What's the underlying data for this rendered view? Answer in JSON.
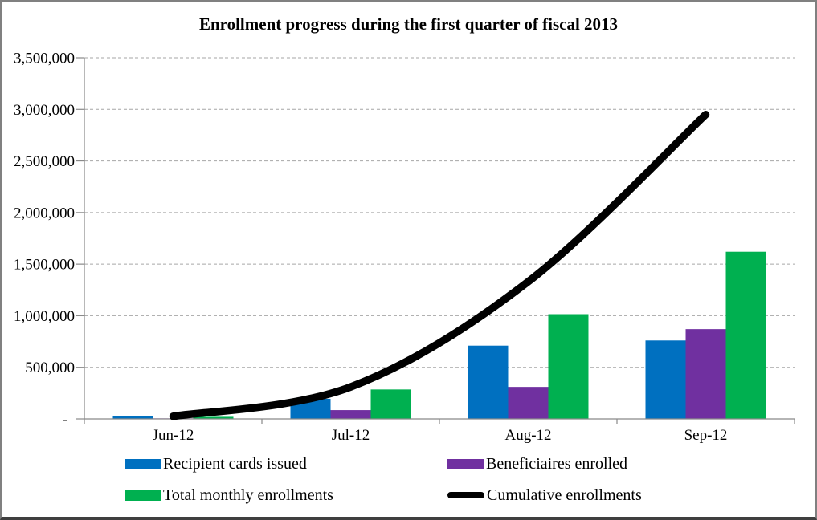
{
  "chart_data": {
    "type": "combo-bar-line",
    "title": "Enrollment progress during the first quarter of fiscal 2013",
    "categories": [
      "Jun-12",
      "Jul-12",
      "Aug-12",
      "Sep-12"
    ],
    "series": [
      {
        "name": "Recipient cards issued",
        "type": "bar",
        "color": "#0070C0",
        "values": [
          25000,
          195000,
          710000,
          760000
        ]
      },
      {
        "name": "Beneficiaires enrolled",
        "type": "bar",
        "color": "#7030A0",
        "values": [
          5000,
          85000,
          310000,
          870000
        ]
      },
      {
        "name": "Total monthly enrollments",
        "type": "bar",
        "color": "#00B050",
        "values": [
          20000,
          285000,
          1015000,
          1620000
        ]
      },
      {
        "name": "Cumulative enrollments",
        "type": "line",
        "color": "#000000",
        "values": [
          25000,
          310000,
          1330000,
          2950000
        ]
      }
    ],
    "y_axis": {
      "min": 0,
      "max": 3500000,
      "tick_interval": 500000,
      "tick_labels_top_to_bottom": [
        "3,500,000",
        "3,000,000",
        "2,500,000",
        "2,000,000",
        "1,500,000",
        "1,000,000",
        "500,000",
        "-"
      ]
    },
    "x_axis": {
      "tick_labels": [
        "Jun-12",
        "Jul-12",
        "Aug-12",
        "Sep-12"
      ]
    },
    "grid": {
      "horizontal": "dashed",
      "color": "#A6A6A6"
    },
    "axis_color": "#898989",
    "legend_position": "bottom-two-columns"
  }
}
